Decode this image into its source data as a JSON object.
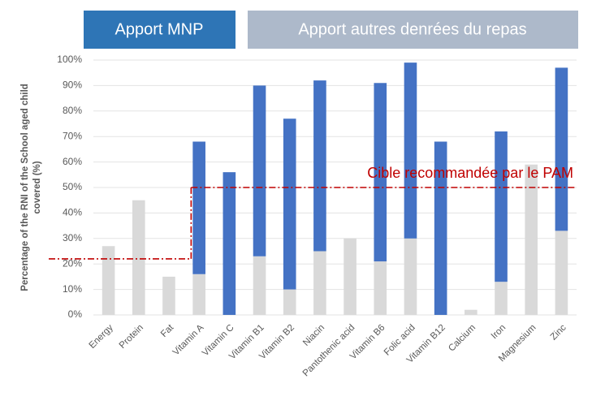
{
  "chart_data": {
    "type": "stacked_bar",
    "y_label": "Percentage of the RNI of the School aged child covered (%)",
    "categories": [
      "Energy",
      "Protein",
      "Fat",
      "Vitamin A",
      "Vitamin C",
      "Vitamin B1",
      "Vitamin B2",
      "Niacin",
      "Pantothenic acid",
      "Vitamin B6",
      "Folic acid",
      "Vitamin B12",
      "Calcium",
      "Iron",
      "Magnesium",
      "Zinc"
    ],
    "series": [
      {
        "name": "Apport autres denrées du repas",
        "color": "#d9d9d9",
        "legend_color": "#adb9ca",
        "values": [
          27,
          45,
          15,
          16,
          0,
          23,
          10,
          25,
          30,
          21,
          30,
          0,
          2,
          13,
          59,
          33
        ]
      },
      {
        "name": "Apport MNP",
        "color": "#4472c4",
        "legend_color": "#2e75b6",
        "values": [
          0,
          0,
          0,
          52,
          56,
          67,
          67,
          67,
          0,
          70,
          69,
          68,
          0,
          59,
          0,
          64
        ]
      }
    ],
    "targets": [
      22,
      50
    ],
    "target_color": "#c00000",
    "annotation": "Cible recommandée par le PAM",
    "ylim": [
      0,
      100
    ],
    "yticks": [
      {
        "value": 0,
        "label": "0%"
      },
      {
        "value": 10,
        "label": "10%"
      },
      {
        "value": 20,
        "label": "20%"
      },
      {
        "value": 30,
        "label": "30%"
      },
      {
        "value": 40,
        "label": "40%"
      },
      {
        "value": 50,
        "label": "50%"
      },
      {
        "value": 60,
        "label": "60%"
      },
      {
        "value": 70,
        "label": "70%"
      },
      {
        "value": 80,
        "label": "80%"
      },
      {
        "value": 90,
        "label": "90%"
      },
      {
        "value": 100,
        "label": "100%"
      }
    ],
    "grid": true
  }
}
